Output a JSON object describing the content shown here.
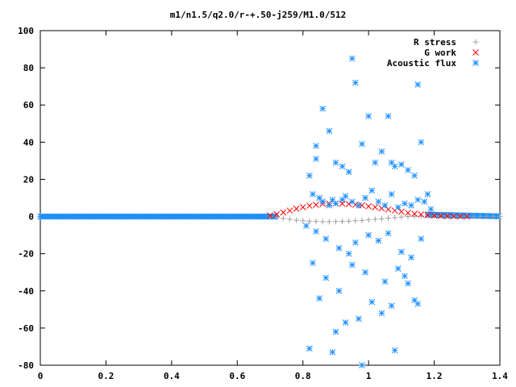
{
  "chart_data": {
    "type": "scatter",
    "title": "m1/n1.5/q2.0/r-+.50-j259/M1.0/512",
    "xlabel": "",
    "ylabel": "",
    "xlim": [
      0,
      1.4
    ],
    "ylim": [
      -80,
      100
    ],
    "x_ticks": [
      "0",
      "0.2",
      "0.4",
      "0.6",
      "0.8",
      "1",
      "1.2",
      "1.4"
    ],
    "y_ticks": [
      "-80",
      "-60",
      "-40",
      "-20",
      "0",
      "20",
      "40",
      "60",
      "80",
      "100"
    ],
    "legend_position": "top-right",
    "grid": false,
    "series": [
      {
        "name": "R stress",
        "marker": "plus",
        "color": "#a0a0a0",
        "x": [
          0.7,
          0.72,
          0.74,
          0.76,
          0.78,
          0.8,
          0.82,
          0.84,
          0.86,
          0.88,
          0.9,
          0.92,
          0.94,
          0.96,
          0.98,
          1.0,
          1.02,
          1.04,
          1.06,
          1.08,
          1.1,
          1.12,
          1.14,
          1.16,
          1.18,
          1.2,
          1.22,
          1.24,
          1.26,
          1.28,
          1.3,
          1.32,
          1.34,
          1.36,
          1.38,
          1.4
        ],
        "y": [
          0,
          -0.5,
          -1,
          -1.5,
          -2,
          -2.3,
          -2.5,
          -2.7,
          -2.8,
          -2.8,
          -2.7,
          -2.6,
          -2.5,
          -2.3,
          -2.1,
          -1.8,
          -1.5,
          -1.2,
          -0.9,
          -0.6,
          -0.3,
          0,
          0.1,
          0.2,
          0.3,
          0.3,
          0.3,
          0.3,
          0.2,
          0.2,
          0.2,
          0.1,
          0.1,
          0.1,
          0.1,
          0
        ]
      },
      {
        "name": "G work",
        "marker": "cross",
        "color": "#ff0000",
        "x": [
          0.7,
          0.72,
          0.74,
          0.76,
          0.78,
          0.8,
          0.82,
          0.84,
          0.86,
          0.88,
          0.9,
          0.92,
          0.94,
          0.96,
          0.98,
          1.0,
          1.02,
          1.04,
          1.06,
          1.08,
          1.1,
          1.12,
          1.14,
          1.16,
          1.18,
          1.2,
          1.22,
          1.24,
          1.26,
          1.28,
          1.3
        ],
        "y": [
          0.5,
          1.2,
          2.2,
          3.2,
          4.2,
          5.0,
          5.8,
          6.3,
          6.8,
          7.0,
          7.0,
          6.9,
          6.7,
          6.4,
          6.0,
          5.5,
          5.0,
          4.4,
          3.8,
          3.2,
          2.6,
          2.0,
          1.5,
          1.1,
          0.8,
          0.5,
          0.3,
          0.2,
          0.1,
          0.05,
          0
        ]
      },
      {
        "name": "Acoustic flux",
        "marker": "star",
        "color": "#1e90ff",
        "x": [
          0.86,
          0.84,
          0.84,
          0.88,
          0.9,
          0.92,
          0.94,
          0.95,
          0.96,
          0.98,
          1.0,
          1.02,
          1.04,
          1.06,
          1.07,
          1.08,
          1.1,
          1.12,
          1.14,
          1.15,
          1.16,
          1.18,
          0.82,
          0.83,
          0.85,
          0.86,
          0.88,
          0.89,
          0.9,
          0.92,
          0.93,
          0.95,
          0.97,
          0.99,
          1.01,
          1.03,
          1.05,
          1.07,
          1.09,
          1.11,
          1.13,
          1.15,
          1.17,
          1.19,
          0.81,
          0.84,
          0.87,
          0.91,
          0.94,
          0.96,
          1.0,
          1.03,
          1.06,
          1.1,
          1.13,
          1.16,
          0.83,
          0.87,
          0.91,
          0.95,
          0.99,
          1.05,
          1.09,
          1.15,
          0.85,
          0.93,
          1.01,
          1.07,
          1.11,
          0.89,
          0.97,
          1.04,
          0.82,
          0.9,
          0.98,
          1.08,
          1.12,
          1.14
        ],
        "y": [
          58,
          38,
          31,
          46,
          29,
          27,
          24,
          85,
          72,
          39,
          54,
          29,
          35,
          54,
          29,
          27,
          28,
          25,
          22,
          71,
          40,
          12,
          22,
          12,
          10,
          8,
          6,
          9,
          7,
          9,
          11,
          8,
          6,
          10,
          14,
          8,
          6,
          12,
          5,
          7,
          6,
          9,
          8,
          4,
          -5,
          -8,
          -12,
          -17,
          -20,
          -14,
          -10,
          -13,
          -9,
          -19,
          -22,
          -12,
          -25,
          -33,
          -40,
          -26,
          -30,
          -35,
          -28,
          -47,
          -44,
          -57,
          -46,
          -48,
          -32,
          -73,
          -55,
          -52,
          -71,
          -62,
          -80,
          -72,
          -36,
          -45
        ]
      }
    ]
  }
}
